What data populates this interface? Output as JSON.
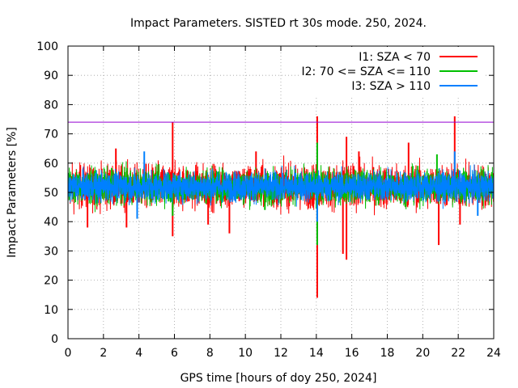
{
  "chart_data": {
    "type": "line",
    "title": "Impact Parameters. SISTED rt 30s mode. 250, 2024.",
    "xlabel": "GPS time [hours of doy 250, 2024]",
    "ylabel": "Impact Parameters [%]",
    "xlim": [
      0,
      24
    ],
    "ylim": [
      0,
      100
    ],
    "x_ticks": [
      "0",
      "2",
      "4",
      "6",
      "8",
      "10",
      "12",
      "14",
      "16",
      "18",
      "20",
      "22",
      "24"
    ],
    "y_ticks": [
      "0",
      "10",
      "20",
      "30",
      "40",
      "50",
      "60",
      "70",
      "80",
      "90",
      "100"
    ],
    "grid": true,
    "legend_position": "top-right",
    "reference_line": {
      "name": "threshold",
      "y": 74,
      "color": "#9400d3"
    },
    "series": [
      {
        "name": "I1: SZA < 70",
        "color": "#ff0000",
        "center": 52,
        "spread": 5,
        "spikes": [
          {
            "x": 5.9,
            "y": 74
          },
          {
            "x": 5.9,
            "y": 35
          },
          {
            "x": 14.05,
            "y": 76
          },
          {
            "x": 14.05,
            "y": 14
          },
          {
            "x": 15.5,
            "y": 29
          },
          {
            "x": 15.7,
            "y": 27
          },
          {
            "x": 15.7,
            "y": 69
          },
          {
            "x": 21.8,
            "y": 76
          },
          {
            "x": 20.9,
            "y": 32
          },
          {
            "x": 9.1,
            "y": 36
          },
          {
            "x": 3.3,
            "y": 38
          },
          {
            "x": 1.1,
            "y": 38
          },
          {
            "x": 7.9,
            "y": 39
          },
          {
            "x": 19.2,
            "y": 67
          },
          {
            "x": 16.4,
            "y": 64
          },
          {
            "x": 22.1,
            "y": 39
          },
          {
            "x": 2.7,
            "y": 65
          },
          {
            "x": 10.6,
            "y": 64
          }
        ]
      },
      {
        "name": "I2: 70 <= SZA <= 110",
        "color": "#00c000",
        "center": 52,
        "spread": 4,
        "spikes": [
          {
            "x": 14.05,
            "y": 32
          },
          {
            "x": 14.05,
            "y": 67
          },
          {
            "x": 5.9,
            "y": 42
          },
          {
            "x": 11.1,
            "y": 44
          },
          {
            "x": 20.8,
            "y": 63
          }
        ]
      },
      {
        "name": "I3: SZA > 110",
        "color": "#0080ff",
        "center": 52,
        "spread": 3.5,
        "spikes": [
          {
            "x": 4.3,
            "y": 64
          },
          {
            "x": 21.8,
            "y": 64
          },
          {
            "x": 3.9,
            "y": 41
          },
          {
            "x": 14.05,
            "y": 40
          },
          {
            "x": 23.1,
            "y": 42
          }
        ]
      }
    ]
  }
}
